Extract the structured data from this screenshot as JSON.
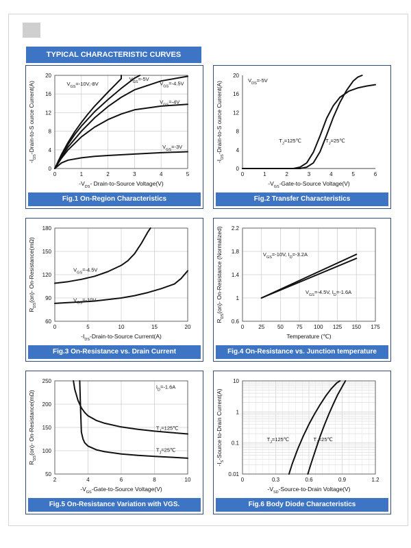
{
  "header": {
    "title": "TYPICAL CHARACTERISTIC CURVES"
  },
  "chart_data": [
    {
      "id": "fig1",
      "type": "line",
      "caption": "Fig.1 On-Region Characteristics",
      "xlabel": "-V_DS- Drain-to-Source Voltage(V)",
      "ylabel": "-I_DS-Drain-to-S ource Current(A)",
      "xlim": [
        0,
        5
      ],
      "ylim": [
        0,
        20
      ],
      "xticks": [
        0,
        1,
        2,
        3,
        4,
        5
      ],
      "yticks": [
        0,
        4,
        8,
        12,
        16,
        20
      ],
      "grid": "xy",
      "series": [
        {
          "name": "V_GS=-10V,-8V",
          "x": [
            0,
            0.25,
            0.5,
            0.75,
            1,
            1.25,
            1.5,
            2,
            2.5,
            2.5
          ],
          "y": [
            0,
            3.0,
            5.6,
            7.9,
            9.9,
            11.7,
            13.4,
            16.4,
            19.3,
            20.0
          ]
        },
        {
          "name": "V_GS=-5V",
          "x": [
            0,
            0.25,
            0.5,
            0.75,
            1,
            1.5,
            2,
            2.5,
            3,
            3.2
          ],
          "y": [
            0,
            2.8,
            5.2,
            7.3,
            9.1,
            12.2,
            14.8,
            17.2,
            19.4,
            20.0
          ]
        },
        {
          "name": "V_GS=-4.5V",
          "x": [
            0,
            0.25,
            0.5,
            1,
            1.5,
            2,
            2.5,
            3,
            4,
            5
          ],
          "y": [
            0,
            2.5,
            4.6,
            8.0,
            10.9,
            13.3,
            15.3,
            16.9,
            18.8,
            19.8
          ]
        },
        {
          "name": "V_GS=-4V",
          "x": [
            0,
            0.25,
            0.5,
            1,
            1.5,
            2,
            2.5,
            3,
            4,
            5
          ],
          "y": [
            0,
            2.2,
            4.0,
            6.8,
            8.9,
            10.5,
            11.7,
            12.6,
            13.4,
            13.8
          ]
        },
        {
          "name": "V_GS=-3V",
          "x": [
            0,
            0.25,
            0.5,
            1,
            1.5,
            2,
            3,
            4,
            5
          ],
          "y": [
            0,
            1.2,
            1.8,
            2.3,
            2.6,
            2.8,
            3.1,
            3.4,
            3.6
          ]
        }
      ],
      "labels": [
        {
          "sym": "V",
          "sub": "GS",
          "rest": "=-10V,-8V",
          "x": 0.45,
          "y": 17.8
        },
        {
          "sym": "V",
          "sub": "GS",
          "rest": "=-5V",
          "x": 2.8,
          "y": 18.8
        },
        {
          "sym": "V",
          "sub": "GS",
          "rest": "=-4.5V",
          "x": 3.95,
          "y": 17.9
        },
        {
          "sym": "V",
          "sub": "GS",
          "rest": "=-4V",
          "x": 3.95,
          "y": 13.9
        },
        {
          "sym": "V",
          "sub": "GS",
          "rest": "=-3V",
          "x": 4.05,
          "y": 4.3
        }
      ]
    },
    {
      "id": "fig2",
      "type": "line",
      "caption": "Fig.2 Transfer Characteristics",
      "xlabel": "-V_GS-Gate-to-Source Voltage(V)",
      "ylabel": "-I_DS-Drain-to-S ource Current(A)",
      "xlim": [
        0,
        6
      ],
      "ylim": [
        0,
        20
      ],
      "xticks": [
        0,
        1,
        2,
        3,
        4,
        5,
        6
      ],
      "yticks": [
        0,
        4,
        8,
        12,
        16,
        20
      ],
      "grid": "none",
      "series": [
        {
          "name": "T_J=125℃",
          "x": [
            0,
            2.3,
            2.6,
            2.9,
            3.2,
            3.5,
            3.8,
            4.1,
            4.4,
            4.8,
            5.2,
            5.6,
            6.0
          ],
          "y": [
            0,
            0,
            0.3,
            1.2,
            3.5,
            7.0,
            10.8,
            13.5,
            15.3,
            16.6,
            17.3,
            17.7,
            18.0
          ]
        },
        {
          "name": "T_J=25℃",
          "x": [
            0,
            2.6,
            2.9,
            3.2,
            3.5,
            3.8,
            4.1,
            4.4,
            4.7,
            5.0,
            5.2,
            5.4
          ],
          "y": [
            0,
            0,
            0.3,
            1.2,
            3.6,
            7.2,
            11.0,
            14.2,
            16.8,
            18.8,
            19.6,
            20.0
          ]
        }
      ],
      "labels": [
        {
          "sym": "V",
          "sub": "DS",
          "rest": "=-5V",
          "x": 0.25,
          "y": 18.5
        },
        {
          "sym": "T",
          "sub": "J",
          "rest": "=125℃",
          "x": 1.65,
          "y": 5.6
        },
        {
          "sym": "T",
          "sub": "J",
          "rest": "=25℃",
          "x": 3.75,
          "y": 5.6
        }
      ]
    },
    {
      "id": "fig3",
      "type": "line",
      "caption": "Fig.3 On-Resistance vs. Drain Current",
      "xlabel": "-I_DS-Drain-to-Source  Current(A)",
      "ylabel": "R_DS(on)- On-Resistance(mΩ)",
      "xlim": [
        0,
        20
      ],
      "ylim": [
        60,
        180
      ],
      "xticks": [
        0,
        5,
        10,
        15,
        20
      ],
      "yticks": [
        60,
        90,
        120,
        150,
        180
      ],
      "grid": "xy",
      "series": [
        {
          "name": "V_GS=-4.5V",
          "x": [
            0,
            2,
            4,
            6,
            8,
            10,
            11,
            12,
            13,
            14,
            14.4
          ],
          "y": [
            109,
            111,
            114,
            118,
            124,
            132,
            138,
            147,
            160,
            175,
            180
          ]
        },
        {
          "name": "V_GS=-10V",
          "x": [
            0,
            2,
            4,
            6,
            8,
            10,
            12,
            14,
            16,
            18,
            19,
            20
          ],
          "y": [
            83,
            84,
            85,
            86,
            88,
            90,
            93,
            97,
            102,
            108,
            115,
            125
          ]
        }
      ],
      "labels": [
        {
          "sym": "V",
          "sub": "GS",
          "rest": "=-4.5V",
          "x": 2.8,
          "y": 124
        },
        {
          "sym": "V",
          "sub": "GS",
          "rest": "=-10V",
          "x": 2.8,
          "y": 85
        }
      ]
    },
    {
      "id": "fig4",
      "type": "line",
      "caption": "Fig.4 On-Resistance vs. Junction temperature",
      "xlabel": "Temperature (℃)",
      "ylabel": "R_DS(on)- On-Resistance (Normalized)",
      "xlim": [
        0,
        175
      ],
      "ylim": [
        0.6,
        2.2
      ],
      "xticks": [
        0,
        25,
        50,
        75,
        100,
        125,
        150,
        175
      ],
      "yticks": [
        0.6,
        1.0,
        1.4,
        1.8,
        2.2
      ],
      "grid": "xy",
      "series": [
        {
          "name": "V_GS=-10V, I_D=-3.2A",
          "x": [
            25,
            150
          ],
          "y": [
            1.0,
            1.75
          ]
        },
        {
          "name": "V_GS=-4.5V, I_D=-1.6A",
          "x": [
            25,
            150
          ],
          "y": [
            1.0,
            1.68
          ]
        }
      ],
      "labels": [
        {
          "sym": "V",
          "sub": "GS",
          "rest": "=-10V, I",
          "sub2": "D",
          "rest2": "=-3.2A",
          "x": 27,
          "y": 1.72
        },
        {
          "sym": "V",
          "sub": "GS",
          "rest": "=-4.5V, I",
          "sub2": "D",
          "rest2": "=-1.6A",
          "x": 83,
          "y": 1.07
        }
      ]
    },
    {
      "id": "fig5",
      "type": "line",
      "caption": "Fig.5 On-Resistance Variation with VGS.",
      "xlabel": "-V_GS-Gate-to-Source  Voltage(V)",
      "ylabel": "R_DS(on)- On-Resistance(mΩ)",
      "xlim": [
        2,
        10
      ],
      "ylim": [
        50,
        250
      ],
      "xticks": [
        2,
        4,
        6,
        8,
        10
      ],
      "yticks": [
        50,
        100,
        150,
        200,
        250
      ],
      "grid": "xy",
      "series": [
        {
          "name": "T_J=125℃",
          "x": [
            3.12,
            3.2,
            3.4,
            3.6,
            3.8,
            4.0,
            4.5,
            5.0,
            6.0,
            7.0,
            8.0,
            9.0,
            10.0
          ],
          "y": [
            250,
            232,
            208,
            192,
            182,
            175,
            165,
            159,
            151,
            146,
            142,
            139,
            136
          ]
        },
        {
          "name": "T_J=25℃",
          "x": [
            3.5,
            3.55,
            3.6,
            3.7,
            3.8,
            4.0,
            4.5,
            5.0,
            6.0,
            7.0,
            8.0,
            9.0,
            10.0
          ],
          "y": [
            250,
            190,
            140,
            125,
            117,
            110,
            102,
            98,
            93,
            90,
            88,
            86,
            84
          ]
        }
      ],
      "labels": [
        {
          "sym": "I",
          "sub": "D",
          "rest": "=-1.6A",
          "x": 8.1,
          "y": 233
        },
        {
          "sym": "T",
          "sub": "J",
          "rest": "=125℃",
          "x": 8.1,
          "y": 145
        },
        {
          "sym": "T",
          "sub": "J",
          "rest": "=25℃",
          "x": 8.1,
          "y": 98
        }
      ]
    },
    {
      "id": "fig6",
      "type": "line",
      "scale_y": "log",
      "caption": "Fig.6 Body Diode Characteristics",
      "xlabel": "-V_SD-Source-to-Drain Voltage(V)",
      "ylabel": "-I_S-Source  to-Drain Current(A)",
      "xlim": [
        0,
        1.2
      ],
      "ylim": [
        0.01,
        10
      ],
      "xticks": [
        0,
        0.3,
        0.6,
        0.9,
        1.2
      ],
      "xticklabels": [
        "0",
        "0.3",
        "0.6",
        "0.9",
        "1.2"
      ],
      "yticks": [
        0.01,
        0.1,
        1,
        10
      ],
      "yticklabels": [
        "0.01",
        "0.1",
        "1",
        "10"
      ],
      "grid": "xy-log",
      "series": [
        {
          "name": "T_J=125℃",
          "x": [
            0.42,
            0.45,
            0.5,
            0.55,
            0.6,
            0.65,
            0.7,
            0.75,
            0.8,
            0.85,
            0.88
          ],
          "y": [
            0.01,
            0.022,
            0.065,
            0.17,
            0.4,
            0.85,
            1.7,
            3.2,
            5.5,
            8.5,
            10
          ]
        },
        {
          "name": "T_J=25℃",
          "x": [
            0.59,
            0.62,
            0.66,
            0.7,
            0.74,
            0.78,
            0.82,
            0.86,
            0.9,
            0.93
          ],
          "y": [
            0.01,
            0.022,
            0.06,
            0.16,
            0.38,
            0.85,
            1.8,
            3.6,
            6.5,
            10
          ]
        }
      ],
      "labels": [
        {
          "sym": "T",
          "sub": "J",
          "rest": "=125℃",
          "x": 0.22,
          "y": 0.115
        },
        {
          "sym": "T",
          "sub": "J",
          "rest": "=25℃",
          "x": 0.64,
          "y": 0.115
        }
      ]
    }
  ]
}
